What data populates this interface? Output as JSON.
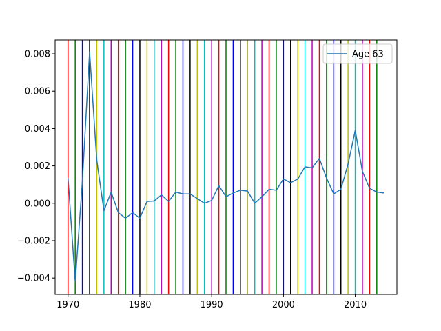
{
  "chart_data": {
    "type": "line",
    "title": "",
    "xlabel": "",
    "ylabel": "",
    "xlim": [
      1968.2,
      2015.8
    ],
    "ylim": [
      -0.00488,
      0.00874
    ],
    "x_ticks": [
      1970,
      1980,
      1990,
      2000,
      2010
    ],
    "x_tick_labels": [
      "1970",
      "1980",
      "1990",
      "2000",
      "2010"
    ],
    "y_ticks": [
      -0.004,
      -0.002,
      0.0,
      0.002,
      0.004,
      0.006,
      0.008
    ],
    "y_tick_labels": [
      "−0.004",
      "−0.002",
      "0.000",
      "0.002",
      "0.004",
      "0.006",
      "0.008"
    ],
    "grid": false,
    "legend": {
      "position": "top-right",
      "entries": [
        "Age 63"
      ]
    },
    "series": [
      {
        "name": "Age 63",
        "color": "#1f77b4",
        "x": [
          1970,
          1971,
          1972,
          1973,
          1974,
          1975,
          1976,
          1977,
          1978,
          1979,
          1980,
          1981,
          1982,
          1983,
          1984,
          1985,
          1986,
          1987,
          1988,
          1989,
          1990,
          1991,
          1992,
          1993,
          1994,
          1995,
          1996,
          1997,
          1998,
          1999,
          2000,
          2001,
          2002,
          2003,
          2004,
          2005,
          2006,
          2007,
          2008,
          2009,
          2010,
          2011,
          2012,
          2013,
          2014
        ],
        "y": [
          0.00135,
          -0.0042,
          0.0012,
          0.0081,
          0.0023,
          -0.0004,
          0.0006,
          -0.0005,
          -0.0008,
          -0.0005,
          -0.0008,
          0.0001,
          0.00012,
          0.00045,
          0.0001,
          0.0006,
          0.0005,
          0.0005,
          0.00025,
          0.0,
          0.00015,
          0.00095,
          0.00035,
          0.00055,
          0.0007,
          0.00065,
          0.0,
          0.00035,
          0.00075,
          0.0007,
          0.0013,
          0.0011,
          0.0013,
          0.00195,
          0.0019,
          0.0024,
          0.00135,
          0.0005,
          0.00075,
          0.0021,
          0.0039,
          0.0017,
          0.0008,
          0.0006,
          0.00055
        ]
      }
    ],
    "vertical_lines": {
      "x": [
        1970,
        1971,
        1972,
        1973,
        1974,
        1975,
        1976,
        1977,
        1978,
        1979,
        1980,
        1981,
        1982,
        1983,
        1984,
        1985,
        1986,
        1987,
        1988,
        1989,
        1990,
        1991,
        1992,
        1993,
        1994,
        1995,
        1996,
        1997,
        1998,
        1999,
        2000,
        2001,
        2002,
        2003,
        2004,
        2005,
        2006,
        2007,
        2008,
        2009,
        2010,
        2011,
        2012,
        2013
      ],
      "color_cycle": [
        "#ff0000",
        "#008000",
        "#0000ff",
        "#000000",
        "#bfbf00",
        "#00bfbf",
        "#bf00bf"
      ]
    }
  }
}
